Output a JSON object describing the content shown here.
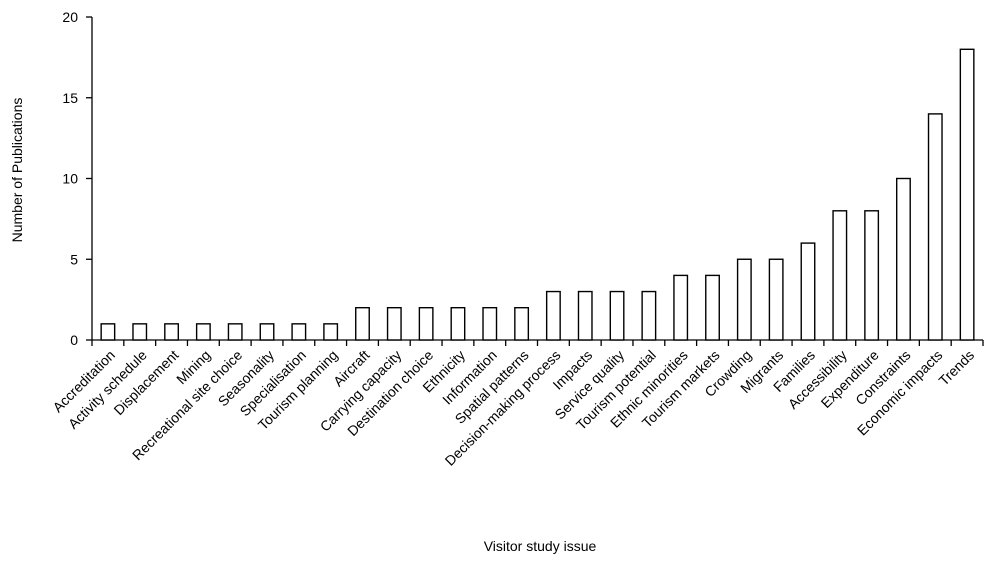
{
  "chart_data": {
    "type": "bar",
    "title": "",
    "xlabel": "Visitor study issue",
    "ylabel": "Number of Publications",
    "ylim": [
      0,
      20
    ],
    "yticks": [
      0,
      5,
      10,
      15,
      20
    ],
    "grid": false,
    "legend": "none",
    "bar_fill": "#ffffff",
    "bar_stroke": "#000000",
    "categories": [
      "Accreditation",
      "Activity schedule",
      "Displacement",
      "Mining",
      "Recreational site choice",
      "Seasonality",
      "Specialisation",
      "Tourism planning",
      "Aircraft",
      "Carrying capacity",
      "Destination choice",
      "Ethnicity",
      "Information",
      "Spatial patterns",
      "Decision-making process",
      "Impacts",
      "Service quality",
      "Tourism potential",
      "Ethnic minorities",
      "Tourism markets",
      "Crowding",
      "Migrants",
      "Families",
      "Accessibility",
      "Expenditure",
      "Constraints",
      "Economic impacts",
      "Trends"
    ],
    "values": [
      1,
      1,
      1,
      1,
      1,
      1,
      1,
      1,
      2,
      2,
      2,
      2,
      2,
      2,
      3,
      3,
      3,
      3,
      4,
      4,
      5,
      5,
      6,
      8,
      8,
      10,
      14,
      18
    ]
  }
}
